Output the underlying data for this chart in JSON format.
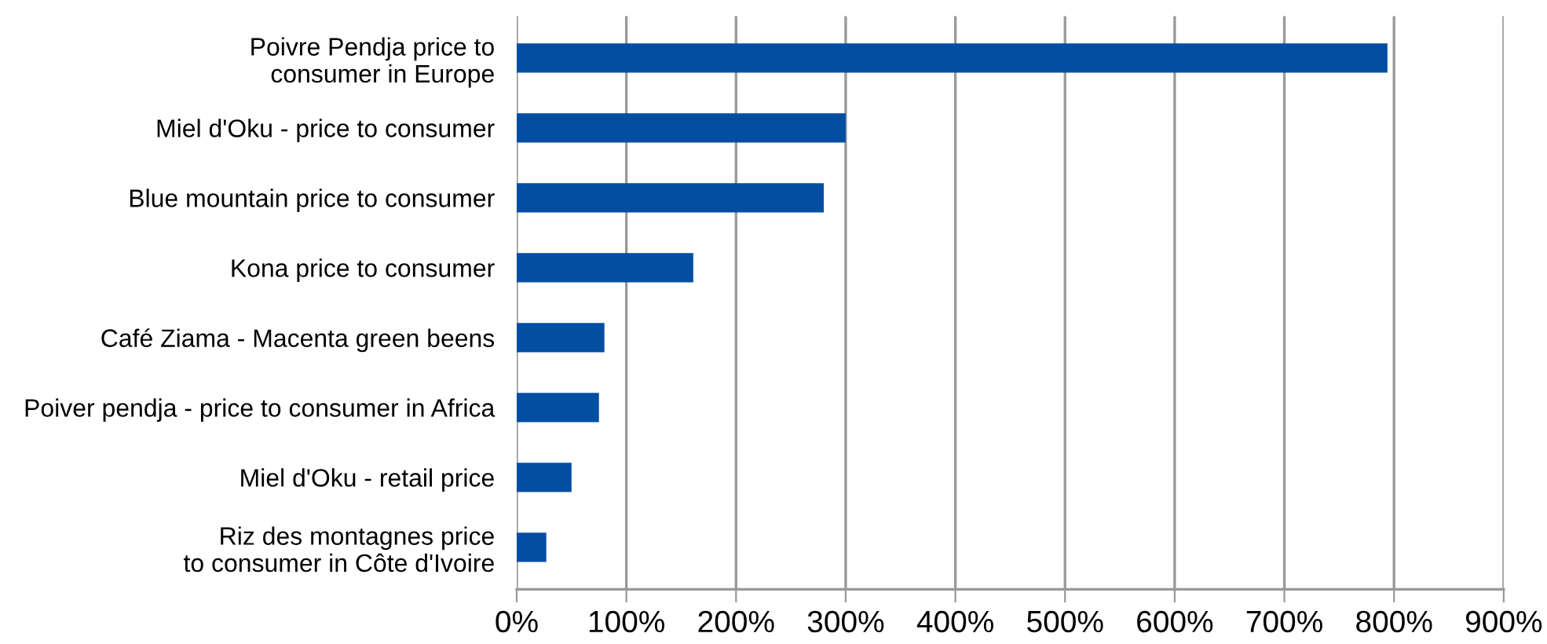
{
  "chart_data": {
    "type": "bar",
    "orientation": "horizontal",
    "categories": [
      "Poivre Pendja price to\nconsumer in Europe",
      "Miel d'Oku - price to consumer",
      "Blue mountain price to consumer",
      "Kona price to consumer",
      "Café Ziama - Macenta green beens",
      "Poiver pendja - price to consumer in Africa",
      "Miel d'Oku - retail price",
      "Riz des montagnes price\nto consumer in Côte d'Ivoire"
    ],
    "values": [
      794,
      300,
      280,
      161,
      80,
      75,
      50,
      27
    ],
    "color": "#034ea2",
    "xlim": [
      0,
      900
    ],
    "xticks": [
      {
        "value": 0,
        "label": "0%"
      },
      {
        "value": 100,
        "label": "100%"
      },
      {
        "value": 200,
        "label": "200%"
      },
      {
        "value": 300,
        "label": "300%"
      },
      {
        "value": 400,
        "label": "400%"
      },
      {
        "value": 500,
        "label": "500%"
      },
      {
        "value": 600,
        "label": "600%"
      },
      {
        "value": 700,
        "label": "700%"
      },
      {
        "value": 800,
        "label": "800%"
      },
      {
        "value": 900,
        "label": "900%"
      }
    ],
    "grid": "x"
  }
}
